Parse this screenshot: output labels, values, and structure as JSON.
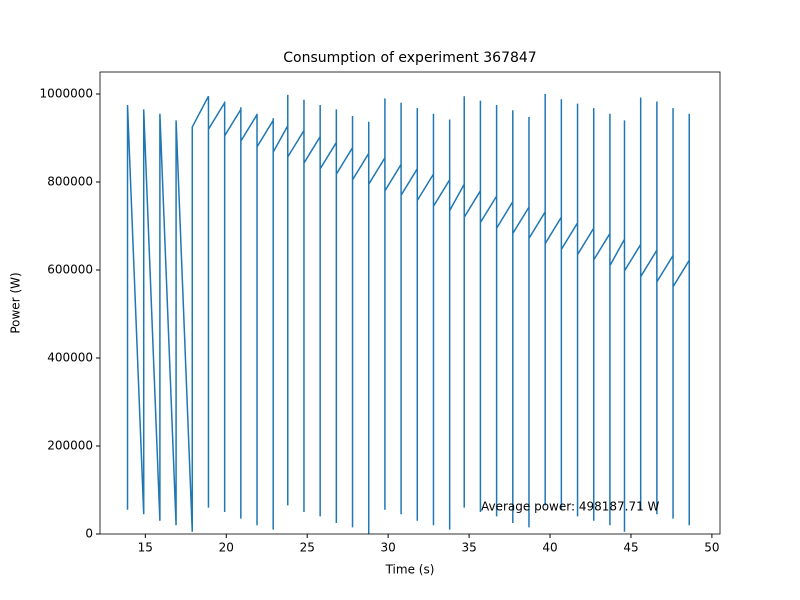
{
  "chart_data": {
    "type": "line",
    "title": "Consumption of experiment 367847",
    "x_label": "Time (s)",
    "y_label": "Power (W)",
    "annotation": "Average power: 498187.71 W",
    "color": "#1f77b4",
    "x": [
      13.9,
      13.9,
      14.9,
      14.9,
      15.9,
      15.9,
      16.9,
      16.9,
      17.9,
      17.9,
      18.9,
      18.9,
      18.9,
      19.9,
      19.9,
      19.9,
      19.9,
      20.9,
      20.9,
      20.9,
      20.9,
      21.9,
      21.9,
      21.9,
      21.9,
      22.9,
      22.9,
      22.9,
      22.9,
      23.8,
      23.8,
      23.8,
      23.8,
      24.8,
      24.8,
      24.8,
      24.8,
      25.8,
      25.8,
      25.8,
      25.8,
      26.8,
      26.8,
      26.8,
      26.8,
      27.8,
      27.8,
      27.8,
      27.8,
      28.8,
      28.8,
      28.8,
      28.8,
      29.8,
      29.8,
      29.8,
      29.8,
      30.8,
      30.8,
      30.8,
      30.8,
      31.8,
      31.8,
      31.8,
      31.8,
      32.8,
      32.8,
      32.8,
      32.8,
      33.8,
      33.8,
      33.8,
      33.8,
      34.7,
      34.7,
      34.7,
      34.7,
      35.7,
      35.7,
      35.7,
      35.7,
      36.7,
      36.7,
      36.7,
      36.7,
      37.7,
      37.7,
      37.7,
      37.7,
      38.7,
      38.7,
      38.7,
      38.7,
      39.7,
      39.7,
      39.7,
      39.7,
      40.7,
      40.7,
      40.7,
      40.7,
      41.7,
      41.7,
      41.7,
      41.7,
      42.7,
      42.7,
      42.7,
      42.7,
      43.7,
      43.7,
      43.7,
      43.7,
      44.6,
      44.6,
      44.6,
      44.6,
      45.6,
      45.6,
      45.6,
      45.6,
      46.6,
      46.6,
      46.6,
      46.6,
      47.6,
      47.6,
      47.6,
      47.6,
      48.6,
      48.6,
      48.6,
      48.6
    ],
    "values": [
      55000,
      975000,
      45000,
      965000,
      30000,
      955000,
      20000,
      940000,
      5000,
      925000,
      995000,
      60000,
      920000,
      980000,
      983000,
      50000,
      905000,
      965000,
      970000,
      35000,
      893000,
      953000,
      955000,
      20000,
      880000,
      940000,
      945000,
      10000,
      868000,
      928000,
      998000,
      65000,
      857000,
      917000,
      987000,
      50000,
      843000,
      903000,
      975000,
      40000,
      830000,
      890000,
      965000,
      25000,
      818000,
      878000,
      950000,
      15000,
      805000,
      865000,
      937000,
      0,
      795000,
      855000,
      990000,
      55000,
      780000,
      840000,
      980000,
      45000,
      770000,
      830000,
      968000,
      30000,
      758000,
      818000,
      955000,
      20000,
      745000,
      805000,
      942000,
      10000,
      735000,
      795000,
      995000,
      60000,
      720000,
      780000,
      985000,
      50000,
      708000,
      768000,
      975000,
      40000,
      695000,
      755000,
      963000,
      25000,
      683000,
      743000,
      948000,
      15000,
      672000,
      732000,
      1000000,
      65000,
      660000,
      720000,
      988000,
      55000,
      647000,
      707000,
      978000,
      40000,
      635000,
      695000,
      968000,
      30000,
      623000,
      683000,
      955000,
      20000,
      610000,
      670000,
      940000,
      5000,
      598000,
      658000,
      992000,
      55000,
      585000,
      645000,
      983000,
      45000,
      573000,
      633000,
      968000,
      35000,
      562000,
      622000,
      955000,
      20000,
      220000
    ],
    "xlim": [
      12.2,
      50.5
    ],
    "ylim": [
      0,
      1050000
    ],
    "xticks": [
      15,
      20,
      25,
      30,
      35,
      40,
      45,
      50
    ],
    "yticks": [
      0,
      200000,
      400000,
      600000,
      800000,
      1000000
    ]
  }
}
